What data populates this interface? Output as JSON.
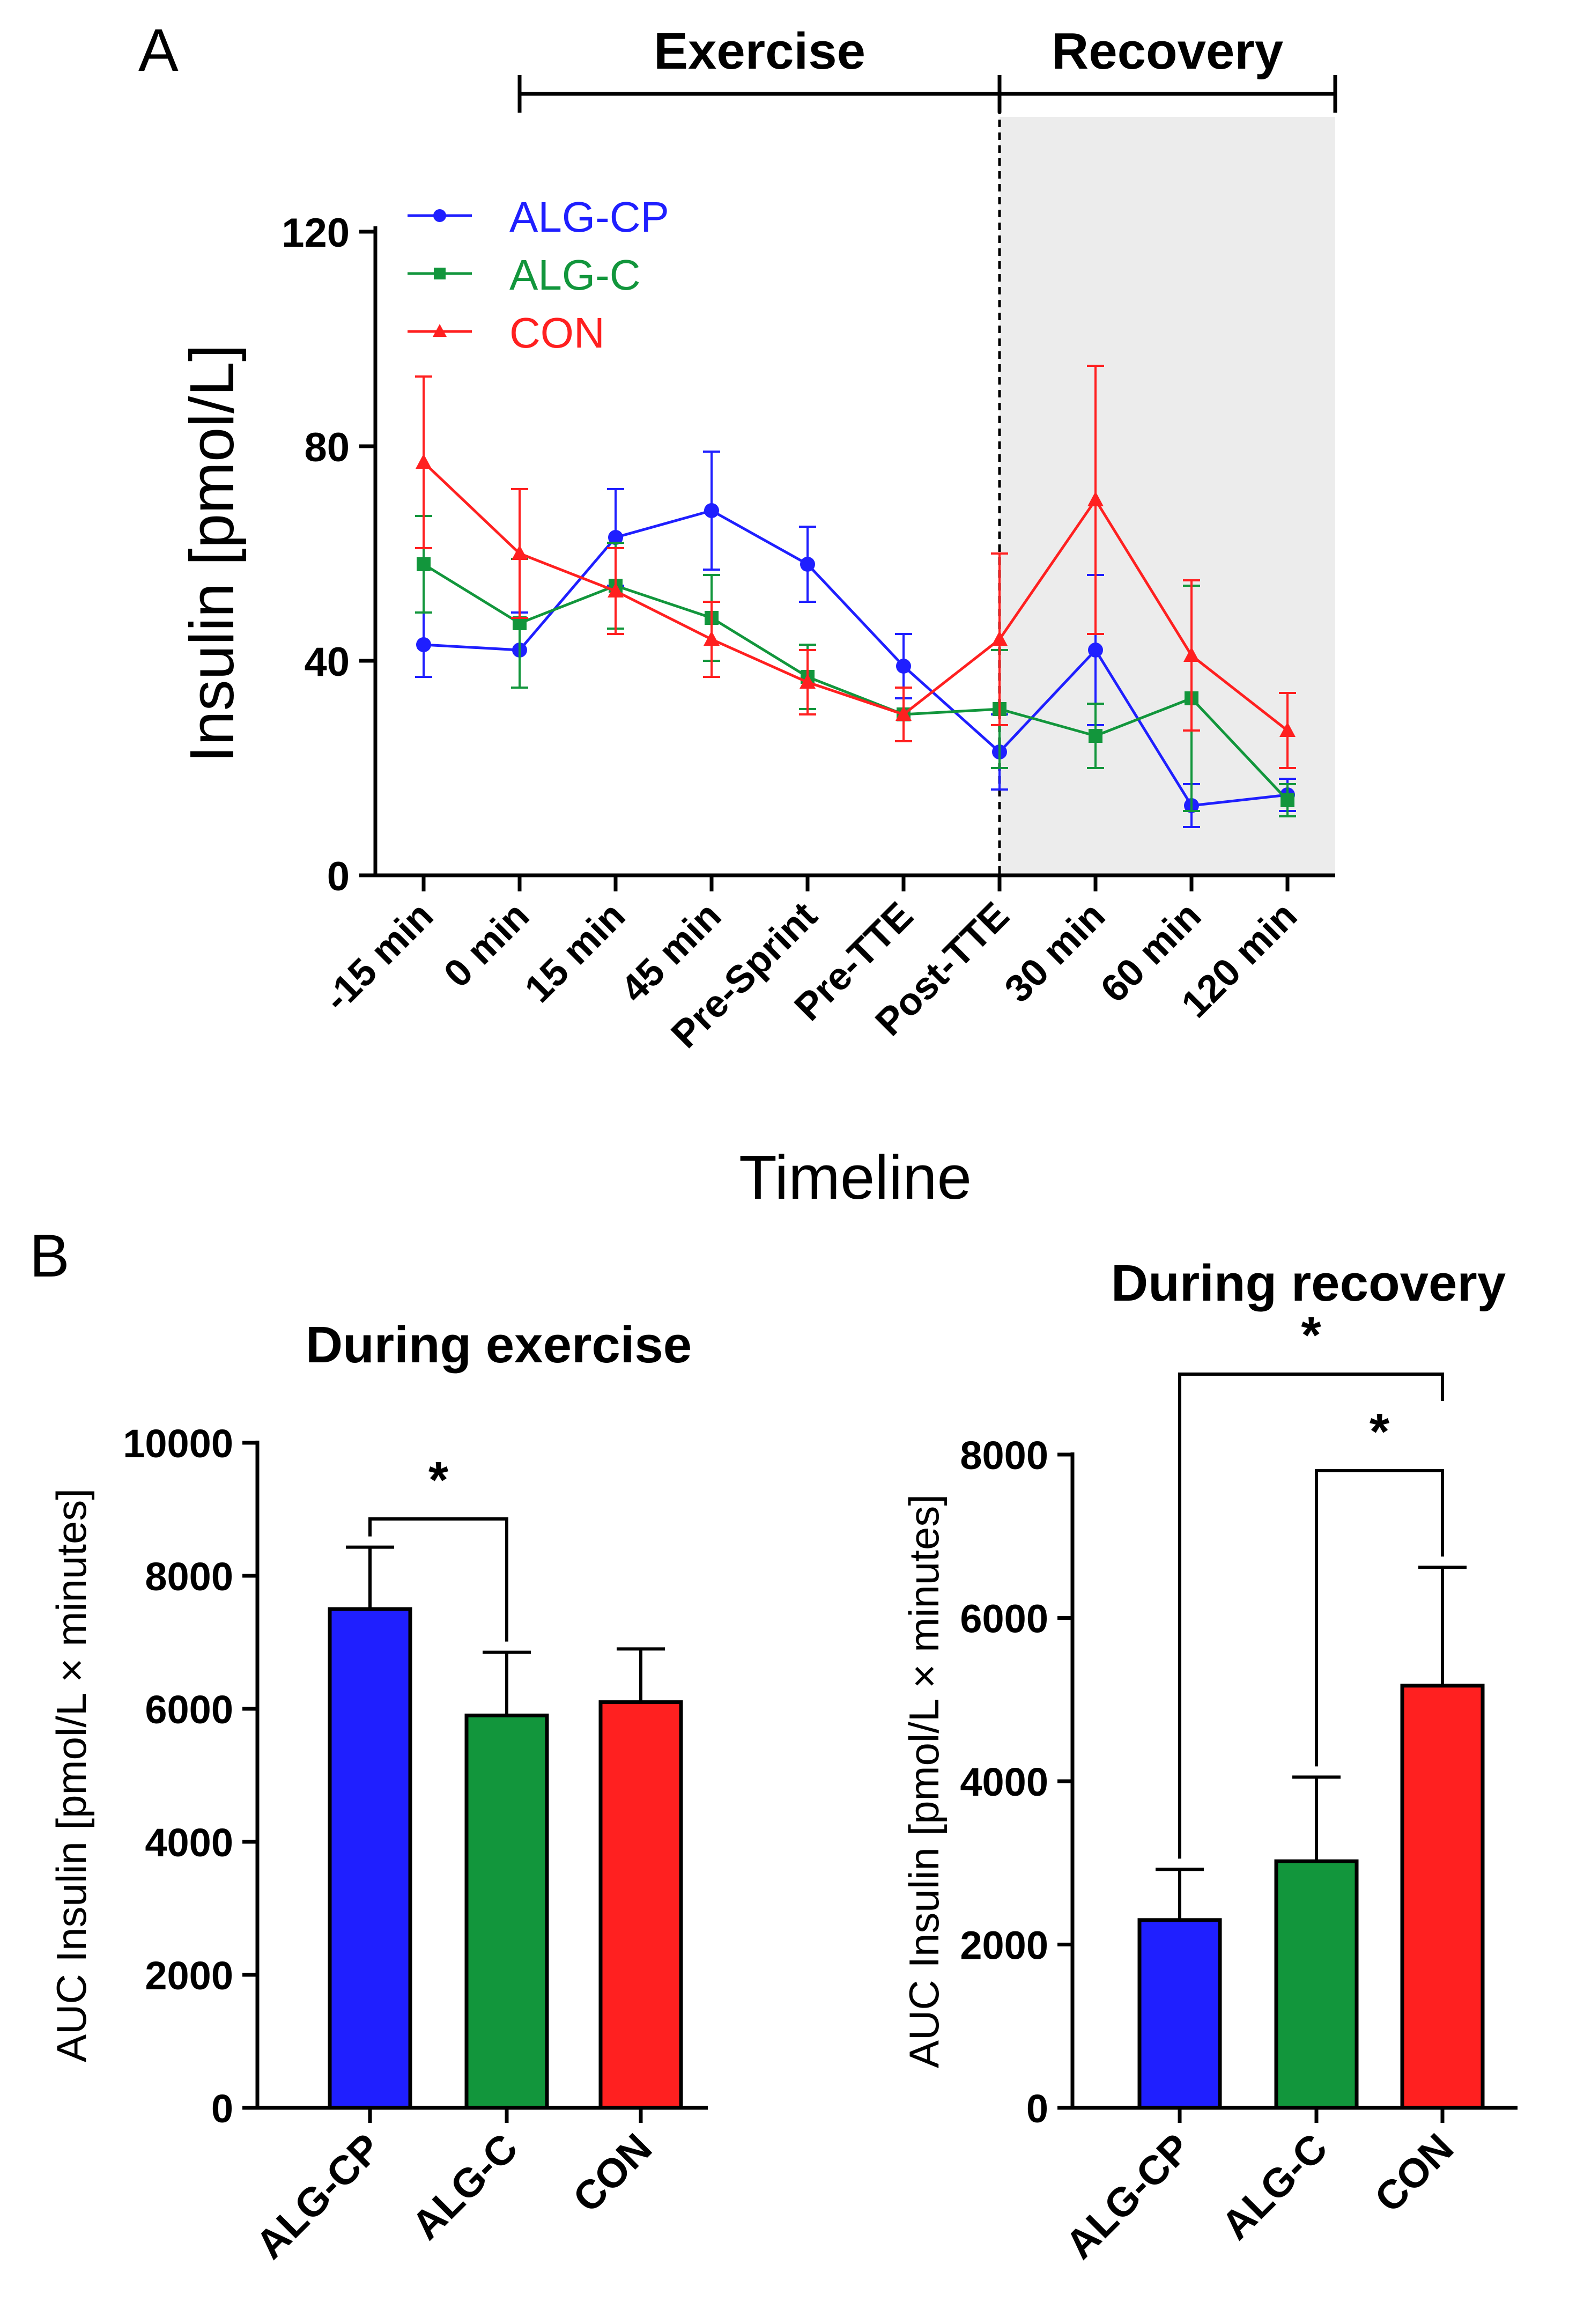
{
  "panel_labels": {
    "a": "A",
    "b": "B"
  },
  "colors": {
    "alg_cp": "#1f1fff",
    "alg_c": "#12963c",
    "con": "#ff2020",
    "recovery_shade": "#ececec",
    "axis": "#000000"
  },
  "chart_data": [
    {
      "id": "panel-a",
      "type": "line",
      "title": "",
      "xlabel": "Timeline",
      "ylabel": "Insulin [pmol/L]",
      "ylim": [
        0,
        120
      ],
      "yticks": [
        0,
        40,
        80,
        120
      ],
      "categories": [
        "-15 min",
        "0 min",
        "15 min",
        "45 min",
        "Pre-Sprint",
        "Pre-TTE",
        "Post-TTE",
        "30 min",
        "60 min",
        "120 min"
      ],
      "phases": [
        {
          "label": "Exercise",
          "from": "0 min",
          "to": "Post-TTE"
        },
        {
          "label": "Recovery",
          "from": "Post-TTE",
          "to": "end"
        }
      ],
      "legend": {
        "position": "top-left",
        "entries": [
          "ALG-CP",
          "ALG-C",
          "CON"
        ]
      },
      "series": [
        {
          "name": "ALG-CP",
          "marker": "circle",
          "values": [
            43,
            42,
            63,
            68,
            58,
            39,
            23,
            42,
            13,
            15
          ],
          "errors": [
            6,
            7,
            9,
            11,
            7,
            6,
            7,
            14,
            4,
            3
          ]
        },
        {
          "name": "ALG-C",
          "marker": "square",
          "values": [
            58,
            47,
            54,
            48,
            37,
            30,
            31,
            26,
            33,
            14
          ],
          "errors": [
            9,
            12,
            8,
            8,
            6,
            5,
            11,
            6,
            21,
            3
          ]
        },
        {
          "name": "CON",
          "marker": "triangle",
          "values": [
            77,
            60,
            53,
            44,
            36,
            30,
            44,
            70,
            41,
            27
          ],
          "errors": [
            16,
            12,
            8,
            7,
            6,
            5,
            16,
            25,
            14,
            7
          ]
        }
      ]
    },
    {
      "id": "panel-b-exercise",
      "type": "bar",
      "title": "During exercise",
      "xlabel": "",
      "ylabel": "AUC Insulin [pmol/L × minutes]",
      "ylim": [
        0,
        10000
      ],
      "yticks": [
        0,
        2000,
        4000,
        6000,
        8000,
        10000
      ],
      "categories": [
        "ALG-CP",
        "ALG-C",
        "CON"
      ],
      "values": [
        7500,
        5900,
        6100
      ],
      "errors": [
        930,
        950,
        800
      ],
      "significance": [
        {
          "from": "ALG-CP",
          "to": "ALG-C",
          "label": "*"
        }
      ]
    },
    {
      "id": "panel-b-recovery",
      "type": "bar",
      "title": "During recovery",
      "xlabel": "",
      "ylabel": "AUC Insulin [pmol/L × minutes]",
      "ylim": [
        0,
        8000
      ],
      "yticks": [
        0,
        2000,
        4000,
        6000,
        8000
      ],
      "categories": [
        "ALG-CP",
        "ALG-C",
        "CON"
      ],
      "values": [
        2300,
        3020,
        5170
      ],
      "errors": [
        620,
        1030,
        1450
      ],
      "significance": [
        {
          "from": "ALG-CP",
          "to": "CON",
          "label": "*"
        },
        {
          "from": "ALG-C",
          "to": "CON",
          "label": "*"
        }
      ]
    }
  ]
}
